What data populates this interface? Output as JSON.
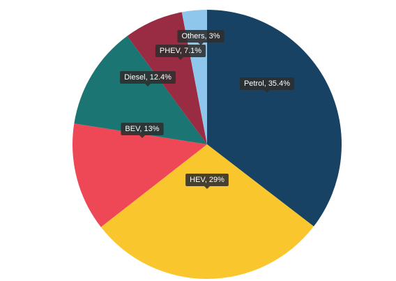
{
  "chart_data": {
    "type": "pie",
    "values": [
      35.4,
      29,
      13,
      12.4,
      7.1,
      3
    ],
    "value_labels": [
      "Petrol, 35.4%",
      "HEV, 29%",
      "BEV, 13%",
      "Diesel, 12.4%",
      "PHEV, 7.1%",
      "Others, 3%"
    ],
    "colors": [
      "#174263",
      "#f9c62d",
      "#ee4857",
      "#1b7572",
      "#992b43",
      "#8fc6ec"
    ]
  }
}
